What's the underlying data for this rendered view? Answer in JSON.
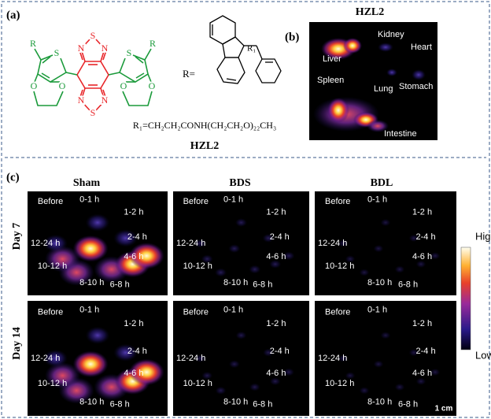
{
  "panel_a": {
    "label": "(a)",
    "core_atoms": [
      "N",
      "S",
      "N",
      "N",
      "S",
      "N"
    ],
    "side_atoms": [
      "S",
      "S",
      "O",
      "O",
      "O",
      "O"
    ],
    "r_groups": [
      "R",
      "R"
    ],
    "r_equals": "R=",
    "r1": "R₁",
    "formula": "R₁=CH₂CH₂CONH(CH₂CH₂O)₂₂CH₃",
    "compound": "HZL2"
  },
  "panel_b": {
    "label": "(b)",
    "title": "HZL2",
    "organs": [
      "Liver",
      "Kidney",
      "Heart",
      "Spleen",
      "Lung",
      "Stomach",
      "Intestine"
    ]
  },
  "panel_c": {
    "label": "(c)",
    "groups": [
      "Sham",
      "BDS",
      "BDL"
    ],
    "days": [
      "Day 7",
      "Day 14"
    ],
    "time_labels": [
      "Before",
      "0-1 h",
      "1-2 h",
      "2-4 h",
      "4-6 h",
      "6-8 h",
      "8-10 h",
      "10-12 h",
      "12-24 h"
    ],
    "colorbar": {
      "high": "High",
      "low": "Low"
    },
    "scale_bar": "1 cm"
  }
}
